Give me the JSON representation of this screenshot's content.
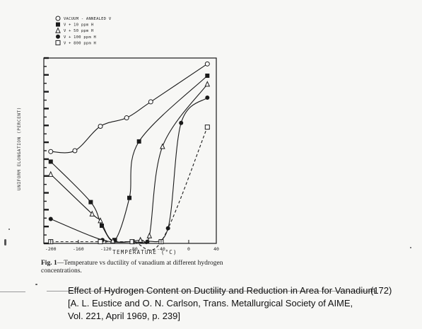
{
  "chart_data": {
    "type": "line",
    "title": "",
    "xlabel": "TEMPERATURE (°C)",
    "ylabel": "UNIFORM ELONGATION (PERCENT)",
    "xlim": [
      -210,
      40
    ],
    "ylim": [
      0,
      22
    ],
    "x_ticks": [
      -200,
      -160,
      -120,
      -80,
      -40,
      0,
      40
    ],
    "y_ticks": [],
    "grid": false,
    "legend_position": "top-left",
    "series": [
      {
        "name": "VACUUM - ANNEALED V",
        "marker": "open-circle",
        "line": "solid",
        "points": [
          [
            -200,
            10.9
          ],
          [
            -165,
            11.0
          ],
          [
            -128,
            13.9
          ],
          [
            -90,
            14.9
          ],
          [
            -55,
            16.8
          ],
          [
            27,
            21.3
          ]
        ]
      },
      {
        "name": "V + 10 ppm H",
        "marker": "filled-square",
        "line": "solid",
        "points": [
          [
            -200,
            9.7
          ],
          [
            -142,
            4.9
          ],
          [
            -126,
            2.1
          ],
          [
            -107,
            0.4
          ],
          [
            -86,
            5.4
          ],
          [
            -72,
            12.1
          ],
          [
            27,
            19.9
          ]
        ]
      },
      {
        "name": "V + 50 ppm H",
        "marker": "filled-triangle",
        "line": "solid",
        "points": [
          [
            -200,
            8.2
          ],
          [
            -140,
            3.5
          ],
          [
            -128,
            2.7
          ],
          [
            -110,
            0.3
          ],
          [
            -70,
            0.4
          ],
          [
            -57,
            0.9
          ],
          [
            -38,
            11.5
          ],
          [
            27,
            18.9
          ]
        ]
      },
      {
        "name": "V + 100 ppm H",
        "marker": "filled-circle",
        "line": "solid",
        "points": [
          [
            -200,
            2.9
          ],
          [
            -125,
            0.4
          ],
          [
            -82,
            0.2
          ],
          [
            -60,
            0.2
          ],
          [
            -30,
            1.8
          ],
          [
            -11,
            14.3
          ],
          [
            27,
            17.3
          ]
        ]
      },
      {
        "name": "V + 800 ppm H",
        "marker": "open-square",
        "line": "dashed",
        "points": [
          [
            -200,
            0.2
          ],
          [
            -128,
            0.2
          ],
          [
            -82,
            0.2
          ],
          [
            -40,
            0.2
          ],
          [
            27,
            13.8
          ]
        ]
      }
    ]
  },
  "caption": {
    "label": "Fig. 1",
    "text": "—Temperature vs ductility of vanadium at different hydrogen concentrations."
  },
  "source": {
    "line1": "Effect of Hydrogen Content on Ductility and Reduction in Area for Vanadium",
    "line2": "[A. L. Eustice and O. N. Carlson, Trans. Metallurgical Society of AIME,",
    "line3": "Vol. 221, April 1969, p. 239]",
    "page_number": "(172)"
  }
}
